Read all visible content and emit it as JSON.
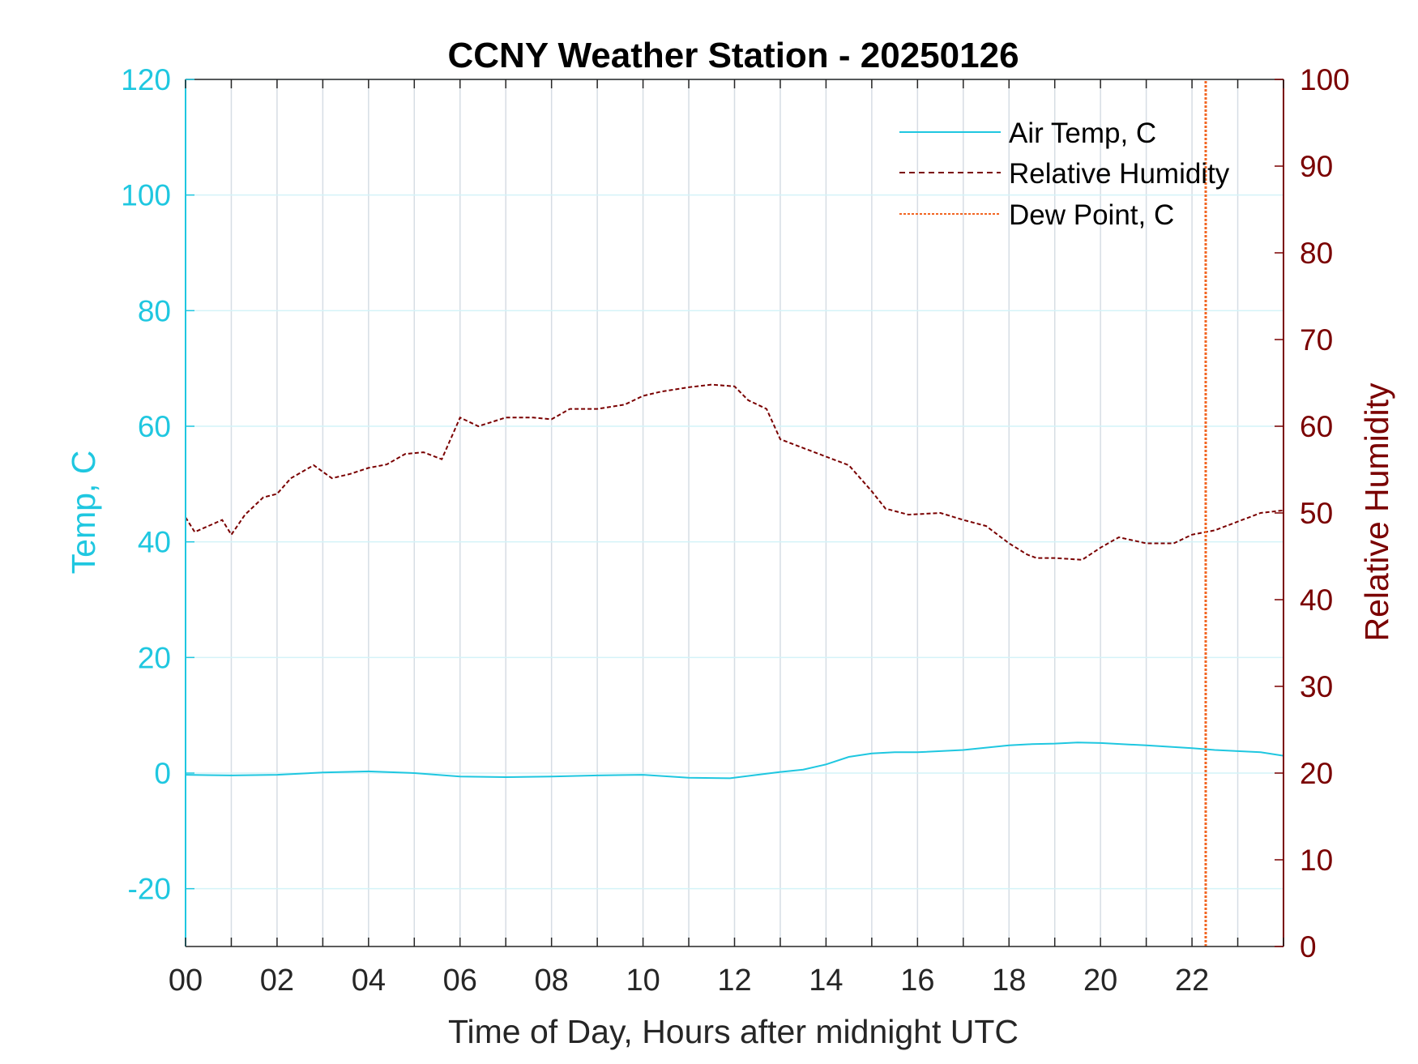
{
  "chart_data": {
    "type": "line",
    "title": "CCNY Weather Station - 20250126",
    "xlabel": "Time of Day, Hours after midnight UTC",
    "ylabel_left": "Temp, C",
    "ylabel_right": "Relative Humidity",
    "xlim": [
      0,
      24
    ],
    "ylim_left": [
      -30,
      120
    ],
    "ylim_right": [
      0,
      100
    ],
    "x_ticks": [
      0,
      2,
      4,
      6,
      8,
      10,
      12,
      14,
      16,
      18,
      20,
      22
    ],
    "x_tick_labels": [
      "00",
      "02",
      "04",
      "06",
      "08",
      "10",
      "12",
      "14",
      "16",
      "18",
      "20",
      "22"
    ],
    "y_left_ticks": [
      -20,
      0,
      20,
      40,
      60,
      80,
      100,
      120
    ],
    "y_left_tick_labels": [
      "-20",
      "0",
      "20",
      "40",
      "60",
      "80",
      "100",
      "120"
    ],
    "y_right_ticks": [
      0,
      10,
      20,
      30,
      40,
      50,
      60,
      70,
      80,
      90,
      100
    ],
    "y_right_tick_labels": [
      "0",
      "10",
      "20",
      "30",
      "40",
      "50",
      "60",
      "70",
      "80",
      "90",
      "100"
    ],
    "grid": true,
    "legend_position": "top-right",
    "colors": {
      "air_temp": "#1fc7e0",
      "humidity": "#7a0000",
      "dew_point": "#f26522",
      "left_axis": "#1fc7e0",
      "right_axis": "#7a0000",
      "grid_vertical": "#d6dde4",
      "grid_horizontal": "#d4f3f8"
    },
    "series": [
      {
        "name": "Air Temp, C",
        "axis": "left",
        "style": "solid",
        "x": [
          0,
          1,
          2,
          3,
          4,
          5,
          6,
          7,
          8,
          9,
          10,
          11,
          11.9,
          12.5,
          13,
          13.5,
          14,
          14.5,
          15,
          15.5,
          16,
          17,
          17.5,
          18,
          18.5,
          19,
          19.5,
          20,
          21,
          22,
          22.5,
          23,
          23.5,
          24
        ],
        "values": [
          -0.3,
          -0.4,
          -0.3,
          0.1,
          0.3,
          0.0,
          -0.6,
          -0.7,
          -0.6,
          -0.4,
          -0.3,
          -0.8,
          -0.9,
          -0.3,
          0.2,
          0.6,
          1.5,
          2.8,
          3.4,
          3.6,
          3.6,
          4.0,
          4.4,
          4.8,
          5.0,
          5.1,
          5.3,
          5.2,
          4.8,
          4.3,
          4.0,
          3.8,
          3.6,
          3.0
        ]
      },
      {
        "name": "Relative Humidity",
        "axis": "right",
        "style": "dashed",
        "x": [
          0,
          0.2,
          0.5,
          0.8,
          1.0,
          1.3,
          1.7,
          2.0,
          2.3,
          2.8,
          3.2,
          3.6,
          4.0,
          4.4,
          4.8,
          5.2,
          5.6,
          6.0,
          6.4,
          7.0,
          7.6,
          8.0,
          8.4,
          9.0,
          9.6,
          10.0,
          10.4,
          11.0,
          11.5,
          12.0,
          12.3,
          12.7,
          13.0,
          13.5,
          14.0,
          14.5,
          15.0,
          15.3,
          15.8,
          16.5,
          17.0,
          17.5,
          18.0,
          18.4,
          18.6,
          19.0,
          19.6,
          20.0,
          20.4,
          21.0,
          21.6,
          22.0,
          22.5,
          23.0,
          23.5,
          24.0
        ],
        "values": [
          49.5,
          47.8,
          48.5,
          49.2,
          47.5,
          49.8,
          51.8,
          52.2,
          54.0,
          55.5,
          54.0,
          54.5,
          55.2,
          55.6,
          56.8,
          57.0,
          56.2,
          61.0,
          60.0,
          61.0,
          61.0,
          60.8,
          62.0,
          62.0,
          62.5,
          63.5,
          64.0,
          64.5,
          64.8,
          64.6,
          63.0,
          62.0,
          58.5,
          57.5,
          56.5,
          55.5,
          52.5,
          50.5,
          49.8,
          50.0,
          49.2,
          48.5,
          46.5,
          45.2,
          44.8,
          44.8,
          44.6,
          46.0,
          47.2,
          46.5,
          46.5,
          47.5,
          48.0,
          49.0,
          50.0,
          50.3
        ]
      },
      {
        "name": "Dew Point, C",
        "axis": "left",
        "style": "dotted",
        "x": [
          22.3,
          22.3
        ],
        "values": [
          -30,
          120
        ]
      }
    ]
  }
}
